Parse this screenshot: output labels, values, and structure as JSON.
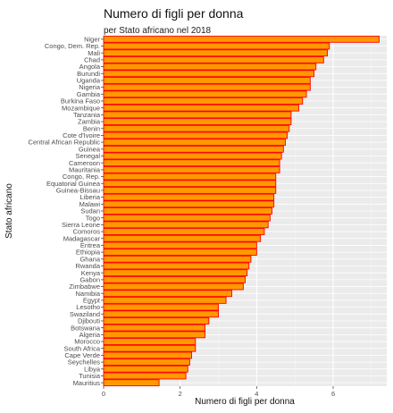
{
  "chart_data": {
    "type": "bar",
    "orientation": "horizontal",
    "title": "Numero di figli per donna",
    "subtitle": "per Stato africano nel 2018",
    "xlabel": "Numero di figli per donna",
    "ylabel": "Stato africano",
    "xlim": [
      0,
      7.4
    ],
    "xticks": [
      0,
      2,
      4,
      6
    ],
    "grid": true,
    "bar_fill": "#ff9900",
    "bar_stroke": "#ff0000",
    "panel_background": "#ebebeb",
    "categories": [
      "Niger",
      "Congo, Dem. Rep.",
      "Mali",
      "Chad",
      "Angola",
      "Burundi",
      "Uganda",
      "Nigeria",
      "Gambia",
      "Burkina Faso",
      "Mozambique",
      "Tanzania",
      "Zambia",
      "Benin",
      "Cote d'Ivoire",
      "Central African Republic",
      "Guinea",
      "Senegal",
      "Cameroon",
      "Mauritania",
      "Congo, Rep.",
      "Equatorial Guinea",
      "Guinea-Bissau",
      "Liberia",
      "Malawi",
      "Sudan",
      "Togo",
      "Sierra Leone",
      "Comoros",
      "Madagascar",
      "Eritrea",
      "Ethiopia",
      "Ghana",
      "Rwanda",
      "Kenya",
      "Gabon",
      "Zimbabwe",
      "Namibia",
      "Egypt",
      "Lesotho",
      "Swaziland",
      "Djibouti",
      "Botswana",
      "Algeria",
      "Morocco",
      "South Africa",
      "Cape Verde",
      "Seychelles",
      "Libya",
      "Tunisia",
      "Mauritius"
    ],
    "values": [
      7.2,
      5.9,
      5.85,
      5.75,
      5.55,
      5.5,
      5.4,
      5.4,
      5.3,
      5.2,
      5.1,
      4.9,
      4.9,
      4.85,
      4.8,
      4.75,
      4.7,
      4.65,
      4.6,
      4.6,
      4.5,
      4.5,
      4.5,
      4.45,
      4.45,
      4.4,
      4.35,
      4.3,
      4.2,
      4.1,
      4.0,
      4.0,
      3.85,
      3.8,
      3.75,
      3.7,
      3.65,
      3.35,
      3.2,
      3.0,
      3.0,
      2.75,
      2.65,
      2.65,
      2.4,
      2.4,
      2.3,
      2.25,
      2.2,
      2.15,
      1.45
    ]
  }
}
